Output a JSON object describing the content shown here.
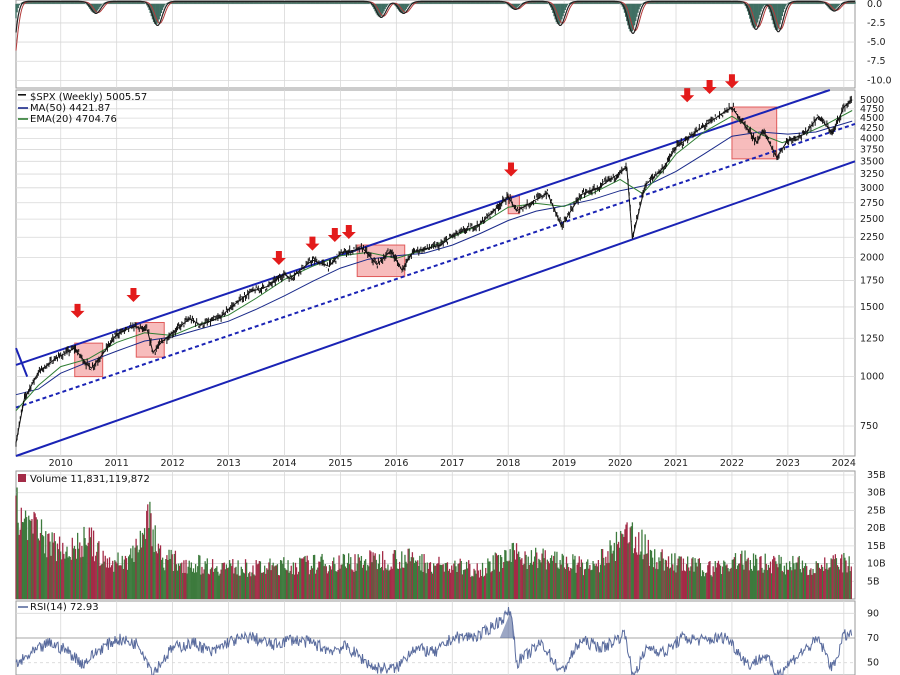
{
  "colors": {
    "price": "#111111",
    "ma50": "#1a2a8a",
    "ema20": "#2e7d32",
    "channel": "#1a23b5",
    "arrow": "#e31b1b",
    "box_fill": "#f4a6a6",
    "box_stroke": "#e05a5a",
    "vol_up": "#3d7a3d",
    "vol_down": "#a32b47",
    "rsi": "#5a6c9e",
    "macd_hist": "#3f6e62",
    "macd_line": "#222222",
    "macd_signal": "#b33b3b",
    "grid": "#d8d8d8"
  },
  "chart_data": [
    {
      "type": "bar",
      "panel": "macd",
      "y_ticks": [
        "0.0",
        "-2.5",
        "-5.0",
        "-7.5",
        "-10.0"
      ],
      "ylim": [
        -11,
        0.5
      ],
      "troughs": [
        {
          "x": 2009.05,
          "y": -10.5
        },
        {
          "x": 2010.6,
          "y": -1.5
        },
        {
          "x": 2011.7,
          "y": -3.0
        },
        {
          "x": 2015.7,
          "y": -2.0
        },
        {
          "x": 2016.1,
          "y": -1.5
        },
        {
          "x": 2018.1,
          "y": -1.0
        },
        {
          "x": 2018.9,
          "y": -3.0
        },
        {
          "x": 2020.2,
          "y": -4.0
        },
        {
          "x": 2022.4,
          "y": -3.5
        },
        {
          "x": 2022.8,
          "y": -3.8
        },
        {
          "x": 2023.8,
          "y": -1.2
        }
      ]
    },
    {
      "type": "line",
      "panel": "price",
      "title": "$SPX (Weekly) 5005.57",
      "legend": [
        {
          "label": "MA(50) 4421.87",
          "color": "#1a2a8a"
        },
        {
          "label": "EMA(20) 4704.76",
          "color": "#2e7d32"
        }
      ],
      "y_scale": "log",
      "ylim": [
        630,
        5300
      ],
      "xlim": [
        2009.2,
        2024.2
      ],
      "x_ticks": [
        "2010",
        "2011",
        "2012",
        "2013",
        "2014",
        "2015",
        "2016",
        "2017",
        "2018",
        "2019",
        "2020",
        "2021",
        "2022",
        "2023",
        "2024"
      ],
      "y_ticks": [
        "5000",
        "4750",
        "4500",
        "4250",
        "4000",
        "3750",
        "3500",
        "3250",
        "3000",
        "2750",
        "2500",
        "2250",
        "2000",
        "1750",
        "1500",
        "1250",
        "1000",
        "750"
      ],
      "price": [
        [
          2009.2,
          680
        ],
        [
          2009.35,
          880
        ],
        [
          2009.6,
          1025
        ],
        [
          2009.9,
          1110
        ],
        [
          2010.25,
          1180
        ],
        [
          2010.45,
          1080
        ],
        [
          2010.55,
          1050
        ],
        [
          2010.75,
          1140
        ],
        [
          2011.0,
          1280
        ],
        [
          2011.3,
          1340
        ],
        [
          2011.55,
          1310
        ],
        [
          2011.65,
          1150
        ],
        [
          2011.8,
          1220
        ],
        [
          2012.0,
          1290
        ],
        [
          2012.3,
          1400
        ],
        [
          2012.5,
          1350
        ],
        [
          2012.85,
          1410
        ],
        [
          2013.0,
          1480
        ],
        [
          2013.4,
          1640
        ],
        [
          2013.7,
          1690
        ],
        [
          2014.0,
          1820
        ],
        [
          2014.1,
          1770
        ],
        [
          2014.5,
          1970
        ],
        [
          2014.8,
          1900
        ],
        [
          2015.0,
          2050
        ],
        [
          2015.4,
          2110
        ],
        [
          2015.65,
          1920
        ],
        [
          2015.9,
          2080
        ],
        [
          2016.1,
          1860
        ],
        [
          2016.3,
          2070
        ],
        [
          2016.8,
          2150
        ],
        [
          2017.0,
          2270
        ],
        [
          2017.5,
          2430
        ],
        [
          2018.0,
          2850
        ],
        [
          2018.15,
          2620
        ],
        [
          2018.7,
          2910
        ],
        [
          2018.95,
          2400
        ],
        [
          2019.3,
          2880
        ],
        [
          2019.6,
          2990
        ],
        [
          2020.0,
          3280
        ],
        [
          2020.12,
          3380
        ],
        [
          2020.22,
          2230
        ],
        [
          2020.45,
          3050
        ],
        [
          2020.8,
          3400
        ],
        [
          2021.0,
          3800
        ],
        [
          2021.4,
          4200
        ],
        [
          2021.9,
          4700
        ],
        [
          2022.0,
          4790
        ],
        [
          2022.45,
          3900
        ],
        [
          2022.55,
          4200
        ],
        [
          2022.8,
          3580
        ],
        [
          2023.0,
          3960
        ],
        [
          2023.3,
          4100
        ],
        [
          2023.55,
          4550
        ],
        [
          2023.8,
          4120
        ],
        [
          2024.0,
          4800
        ],
        [
          2024.15,
          5005
        ]
      ],
      "ma50": [
        [
          2009.2,
          900
        ],
        [
          2009.6,
          930
        ],
        [
          2010.0,
          1020
        ],
        [
          2010.5,
          1090
        ],
        [
          2011.0,
          1160
        ],
        [
          2011.5,
          1230
        ],
        [
          2012.0,
          1260
        ],
        [
          2012.5,
          1320
        ],
        [
          2013.0,
          1380
        ],
        [
          2013.5,
          1480
        ],
        [
          2014.0,
          1600
        ],
        [
          2014.5,
          1740
        ],
        [
          2015.0,
          1880
        ],
        [
          2015.5,
          1980
        ],
        [
          2016.0,
          2020
        ],
        [
          2016.5,
          2050
        ],
        [
          2017.0,
          2150
        ],
        [
          2017.5,
          2300
        ],
        [
          2018.0,
          2480
        ],
        [
          2018.5,
          2620
        ],
        [
          2019.0,
          2700
        ],
        [
          2019.5,
          2800
        ],
        [
          2020.0,
          2950
        ],
        [
          2020.5,
          3050
        ],
        [
          2021.0,
          3300
        ],
        [
          2021.5,
          3650
        ],
        [
          2022.0,
          4050
        ],
        [
          2022.5,
          4150
        ],
        [
          2023.0,
          4100
        ],
        [
          2023.5,
          4150
        ],
        [
          2024.15,
          4422
        ]
      ],
      "ema20": [
        [
          2009.2,
          820
        ],
        [
          2009.6,
          950
        ],
        [
          2010.0,
          1060
        ],
        [
          2010.5,
          1110
        ],
        [
          2011.0,
          1220
        ],
        [
          2011.5,
          1290
        ],
        [
          2012.0,
          1270
        ],
        [
          2012.5,
          1360
        ],
        [
          2013.0,
          1430
        ],
        [
          2013.5,
          1580
        ],
        [
          2014.0,
          1760
        ],
        [
          2014.5,
          1900
        ],
        [
          2015.0,
          2020
        ],
        [
          2015.5,
          2060
        ],
        [
          2016.0,
          1990
        ],
        [
          2016.5,
          2090
        ],
        [
          2017.0,
          2250
        ],
        [
          2017.5,
          2420
        ],
        [
          2018.0,
          2680
        ],
        [
          2018.5,
          2740
        ],
        [
          2019.0,
          2690
        ],
        [
          2019.5,
          2900
        ],
        [
          2020.0,
          3150
        ],
        [
          2020.4,
          2900
        ],
        [
          2020.8,
          3350
        ],
        [
          2021.0,
          3650
        ],
        [
          2021.5,
          4150
        ],
        [
          2022.0,
          4550
        ],
        [
          2022.5,
          4100
        ],
        [
          2022.9,
          3900
        ],
        [
          2023.3,
          4100
        ],
        [
          2023.7,
          4350
        ],
        [
          2024.15,
          4705
        ]
      ],
      "channel_lines": [
        {
          "style": "solid",
          "points": [
            [
              2009.2,
              1070
            ],
            [
              2023.75,
              5300
            ]
          ]
        },
        {
          "style": "dashed",
          "points": [
            [
              2009.2,
              835
            ],
            [
              2024.2,
              4350
            ]
          ]
        },
        {
          "style": "solid",
          "points": [
            [
              2009.2,
              630
            ],
            [
              2024.2,
              3500
            ]
          ]
        },
        {
          "style": "solid",
          "points": [
            [
              2009.2,
              1180
            ],
            [
              2009.4,
              1000
            ]
          ]
        }
      ],
      "arrows": [
        {
          "x": 2010.3,
          "y": 1440
        },
        {
          "x": 2011.3,
          "y": 1580
        },
        {
          "x": 2013.9,
          "y": 1960
        },
        {
          "x": 2014.5,
          "y": 2130
        },
        {
          "x": 2014.9,
          "y": 2240
        },
        {
          "x": 2015.15,
          "y": 2280
        },
        {
          "x": 2018.05,
          "y": 3280
        },
        {
          "x": 2021.2,
          "y": 5050
        },
        {
          "x": 2021.6,
          "y": 5300
        },
        {
          "x": 2022.0,
          "y": 5480
        }
      ],
      "boxes": [
        {
          "x0": 2010.25,
          "x1": 2010.75,
          "y0": 1000,
          "y1": 1215
        },
        {
          "x0": 2011.35,
          "x1": 2011.85,
          "y0": 1120,
          "y1": 1370
        },
        {
          "x0": 2015.3,
          "x1": 2016.15,
          "y0": 1790,
          "y1": 2150
        },
        {
          "x0": 2018.0,
          "x1": 2018.2,
          "y0": 2580,
          "y1": 2860
        },
        {
          "x0": 2022.0,
          "x1": 2022.8,
          "y0": 3550,
          "y1": 4800
        }
      ]
    },
    {
      "type": "bar",
      "panel": "volume",
      "title": "Volume 11,831,119,872",
      "y_ticks": [
        "35B",
        "30B",
        "25B",
        "20B",
        "15B",
        "10B",
        "5B"
      ],
      "ylim": [
        0,
        35
      ],
      "units": "B",
      "envelope": [
        [
          2009.2,
          32
        ],
        [
          2009.5,
          26
        ],
        [
          2009.8,
          20
        ],
        [
          2010.2,
          18
        ],
        [
          2010.5,
          22
        ],
        [
          2010.8,
          13
        ],
        [
          2011.2,
          14
        ],
        [
          2011.6,
          29
        ],
        [
          2011.8,
          15
        ],
        [
          2012.2,
          13
        ],
        [
          2012.8,
          12
        ],
        [
          2013.5,
          11
        ],
        [
          2014.0,
          12
        ],
        [
          2014.8,
          13
        ],
        [
          2015.6,
          14
        ],
        [
          2016.1,
          15
        ],
        [
          2016.8,
          12
        ],
        [
          2017.5,
          11
        ],
        [
          2018.1,
          16
        ],
        [
          2018.9,
          14
        ],
        [
          2019.5,
          11
        ],
        [
          2020.2,
          24
        ],
        [
          2020.6,
          15
        ],
        [
          2021.0,
          13
        ],
        [
          2021.6,
          11
        ],
        [
          2022.2,
          14
        ],
        [
          2022.7,
          13
        ],
        [
          2023.3,
          12
        ],
        [
          2024.0,
          13
        ],
        [
          2024.15,
          11.8
        ]
      ]
    },
    {
      "type": "line",
      "panel": "rsi",
      "title": "RSI(14) 72.93",
      "y_ticks": [
        "90",
        "70",
        "50"
      ],
      "ylim": [
        40,
        100
      ],
      "points": [
        [
          2009.2,
          48
        ],
        [
          2009.5,
          58
        ],
        [
          2009.8,
          66
        ],
        [
          2010.1,
          60
        ],
        [
          2010.4,
          49
        ],
        [
          2010.7,
          61
        ],
        [
          2011.0,
          69
        ],
        [
          2011.4,
          65
        ],
        [
          2011.65,
          42
        ],
        [
          2012.0,
          62
        ],
        [
          2012.4,
          66
        ],
        [
          2012.7,
          58
        ],
        [
          2013.0,
          67
        ],
        [
          2013.4,
          71
        ],
        [
          2013.8,
          64
        ],
        [
          2014.1,
          69
        ],
        [
          2014.5,
          66
        ],
        [
          2014.8,
          60
        ],
        [
          2015.1,
          63
        ],
        [
          2015.6,
          46
        ],
        [
          2016.0,
          45
        ],
        [
          2016.3,
          62
        ],
        [
          2016.7,
          58
        ],
        [
          2017.0,
          70
        ],
        [
          2017.5,
          72
        ],
        [
          2017.9,
          86
        ],
        [
          2018.05,
          92
        ],
        [
          2018.15,
          50
        ],
        [
          2018.6,
          66
        ],
        [
          2018.95,
          42
        ],
        [
          2019.3,
          68
        ],
        [
          2019.7,
          62
        ],
        [
          2020.1,
          74
        ],
        [
          2020.22,
          38
        ],
        [
          2020.5,
          63
        ],
        [
          2020.8,
          58
        ],
        [
          2021.1,
          70
        ],
        [
          2021.5,
          68
        ],
        [
          2021.9,
          71
        ],
        [
          2022.3,
          48
        ],
        [
          2022.6,
          56
        ],
        [
          2022.8,
          40
        ],
        [
          2023.2,
          57
        ],
        [
          2023.55,
          69
        ],
        [
          2023.8,
          45
        ],
        [
          2024.0,
          72
        ],
        [
          2024.15,
          73
        ]
      ]
    }
  ]
}
